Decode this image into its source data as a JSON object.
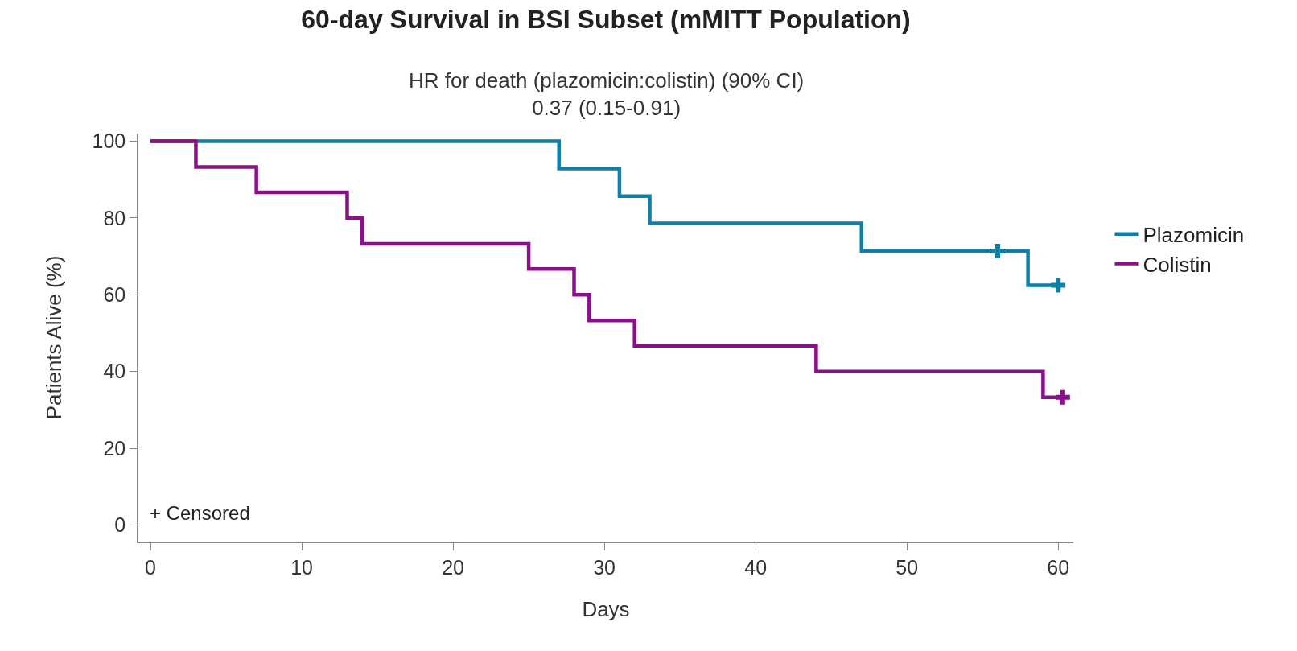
{
  "chart_data": {
    "type": "step",
    "title": "60-day Survival in BSI Subset (mMITT Population)",
    "subtitle": "HR for death (plazomicin:colistin) (90% CI)\n0.37 (0.15-0.91)",
    "xlabel": "Days",
    "ylabel": "Patients Alive (%)",
    "annotations": [
      "+ Censored"
    ],
    "series": [
      {
        "name": "Plazomicin",
        "color": "#0f7fa6",
        "x": [
          0,
          27,
          31,
          33,
          47,
          58,
          60
        ],
        "values": [
          100,
          92.9,
          85.7,
          78.6,
          71.4,
          62.5,
          62.5
        ]
      },
      {
        "name": "Colistin",
        "color": "#8b0f8a",
        "x": [
          0,
          3,
          7,
          13,
          14,
          25,
          28,
          29,
          32,
          44,
          59,
          60.3
        ],
        "values": [
          100,
          93.3,
          86.7,
          80,
          73.3,
          66.7,
          60,
          53.3,
          46.7,
          40,
          33.3,
          33.3
        ]
      },
      {
        "type": "scatter",
        "marker": "cross",
        "color": "#0f7fa6",
        "x": [
          56,
          60
        ],
        "values": [
          71.4,
          62.5
        ]
      },
      {
        "type": "scatter",
        "marker": "cross",
        "color": "#8b0f8a",
        "x": [
          60.3
        ],
        "values": [
          33.3
        ]
      }
    ],
    "xlim": [
      -0.8,
      61
    ],
    "ylim": [
      -4.3,
      102
    ],
    "xticks": [
      0,
      10,
      20,
      30,
      40,
      50,
      60
    ],
    "yticks": [
      0,
      20,
      40,
      60,
      80,
      100
    ],
    "grid": false,
    "legend": "right",
    "marker": "none",
    "line_style": "solid"
  }
}
